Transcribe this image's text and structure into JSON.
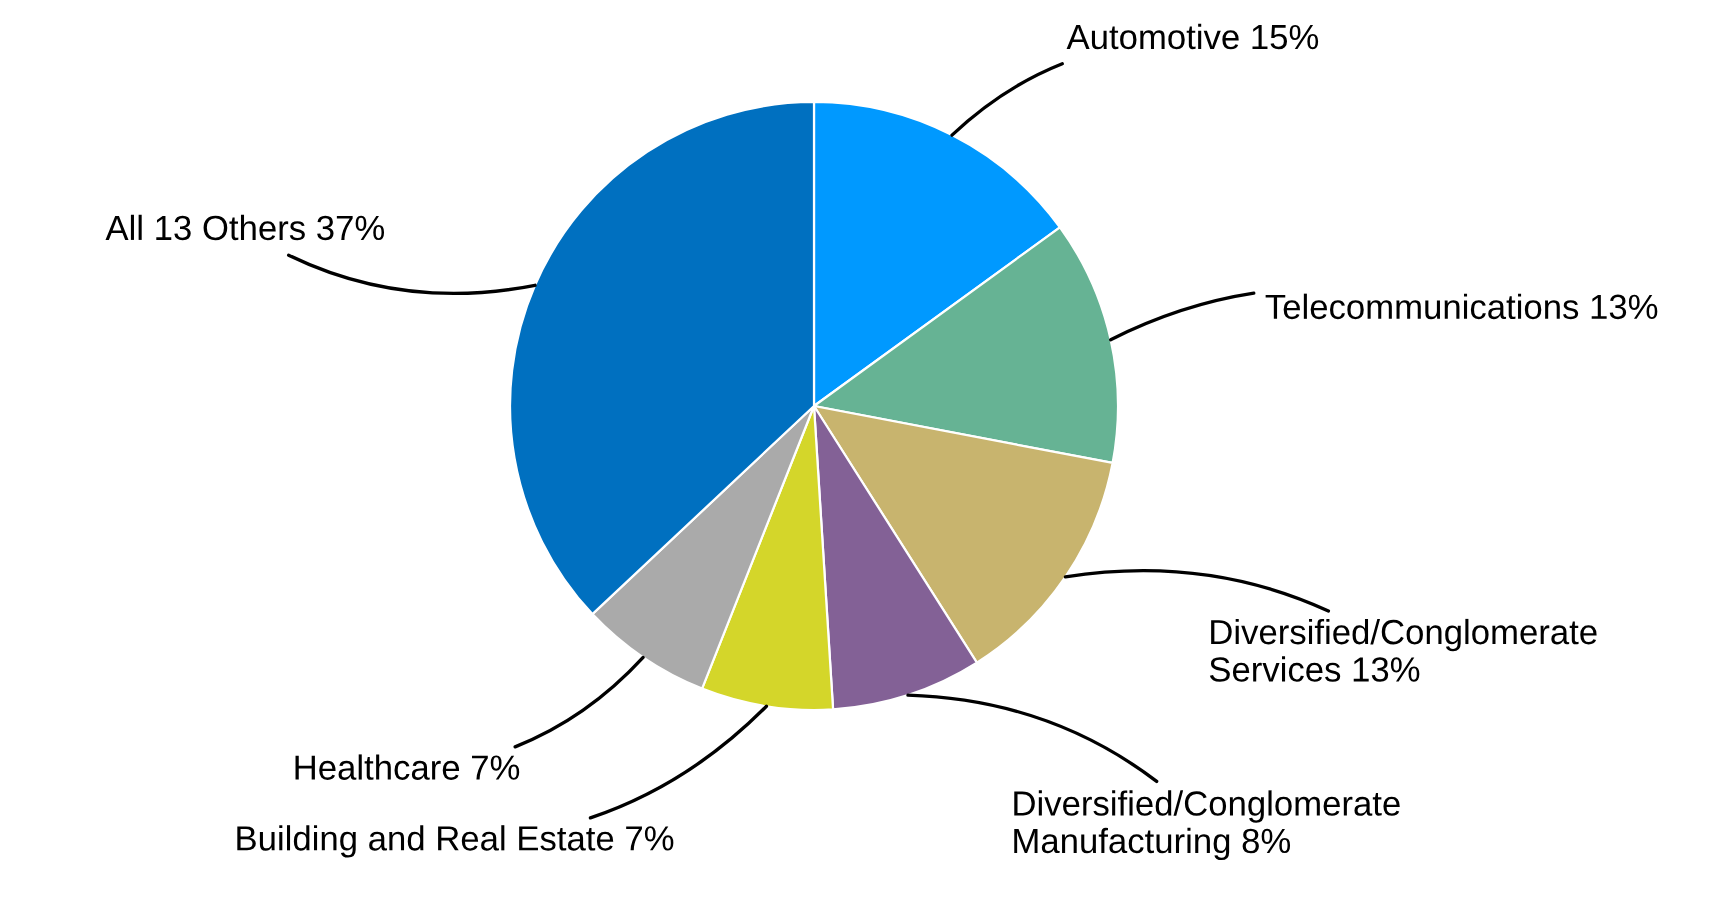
{
  "chart_data": {
    "type": "pie",
    "categories": [
      "Automotive",
      "Telecommunications",
      "Diversified/Conglomerate Services",
      "Diversified/Conglomerate Manufacturing",
      "Building and Real Estate",
      "Healthcare",
      "All 13 Others"
    ],
    "values": [
      15,
      13,
      13,
      8,
      7,
      7,
      37
    ],
    "value_labels": [
      "15%",
      "13%",
      "13%",
      "8%",
      "7%",
      "7%",
      "37%"
    ],
    "colors": [
      "#0099ff",
      "#66b394",
      "#c8b46e",
      "#836196",
      "#d4d62a",
      "#aaaaaa",
      "#0070c0"
    ]
  }
}
